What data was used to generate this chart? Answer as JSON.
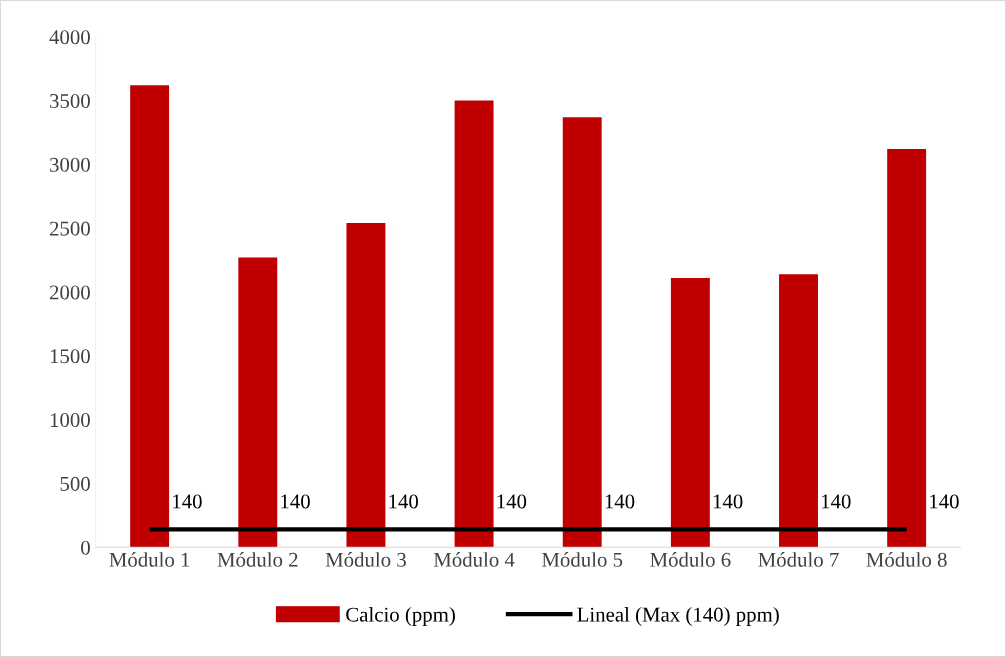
{
  "chart_data": {
    "type": "bar",
    "categories": [
      "Módulo 1",
      "Módulo 2",
      "Módulo 3",
      "Módulo 4",
      "Módulo 5",
      "Módulo 6",
      "Módulo 7",
      "Módulo 8"
    ],
    "series": [
      {
        "name": "Calcio (ppm)",
        "color": "#c00000",
        "values": [
          3620,
          2270,
          2540,
          3500,
          3370,
          2110,
          2140,
          3120
        ]
      },
      {
        "name": "Lineal (Max (140) ppm)",
        "type": "line",
        "color": "#000000",
        "values": [
          140,
          140,
          140,
          140,
          140,
          140,
          140,
          140
        ],
        "value_labels": [
          "140",
          "140",
          "140",
          "140",
          "140",
          "140",
          "140",
          "140"
        ]
      }
    ],
    "ylim": [
      0,
      4000
    ],
    "yticks": [
      0,
      500,
      1000,
      1500,
      2000,
      2500,
      3000,
      3500,
      4000
    ],
    "grid": false,
    "legend": "bottom"
  }
}
